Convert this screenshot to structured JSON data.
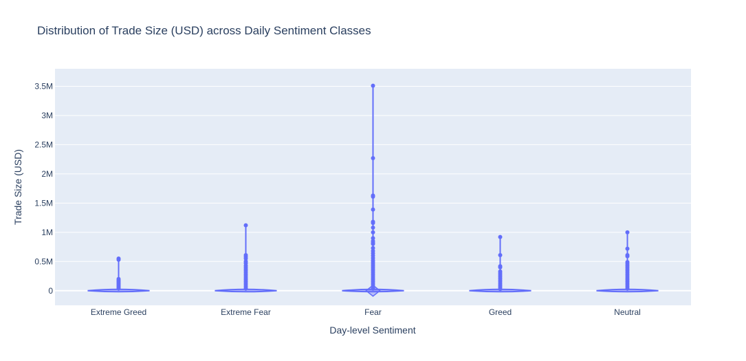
{
  "chart_data": {
    "type": "violin",
    "title": "Distribution of Trade Size (USD) across Daily Sentiment Classes",
    "xlabel": "Day-level Sentiment",
    "ylabel": "Trade Size (USD)",
    "ylim": [
      -250000,
      3800000
    ],
    "yticks": [
      {
        "value": 0,
        "label": "0"
      },
      {
        "value": 500000,
        "label": "0.5M"
      },
      {
        "value": 1000000,
        "label": "1M"
      },
      {
        "value": 1500000,
        "label": "1.5M"
      },
      {
        "value": 2000000,
        "label": "2M"
      },
      {
        "value": 2500000,
        "label": "2.5M"
      },
      {
        "value": 3000000,
        "label": "3M"
      },
      {
        "value": 3500000,
        "label": "3.5M"
      }
    ],
    "grid": true,
    "series_color": "#636efa",
    "plot_background": "#e5ecf6",
    "categories": [
      {
        "name": "Extreme Greed",
        "max": 550000,
        "upper_fence": 200000,
        "outliers": [
          550000,
          530000,
          200000,
          180000,
          160000,
          140000,
          120000,
          100000,
          80000,
          60000,
          40000
        ]
      },
      {
        "name": "Extreme Fear",
        "max": 1120000,
        "upper_fence": 300000,
        "outliers": [
          1120000,
          610000,
          580000,
          550000,
          500000,
          470000,
          430000,
          400000,
          370000,
          340000,
          310000,
          280000,
          250000,
          220000,
          190000,
          160000,
          130000,
          100000,
          70000,
          40000
        ]
      },
      {
        "name": "Fear",
        "max": 3510000,
        "upper_fence": 500000,
        "outliers": [
          3510000,
          2270000,
          1630000,
          1610000,
          1390000,
          1180000,
          1160000,
          1080000,
          1000000,
          900000,
          850000,
          820000,
          800000,
          730000,
          680000,
          640000,
          600000,
          560000,
          520000,
          490000,
          460000,
          430000,
          400000,
          370000,
          340000,
          310000,
          280000,
          250000,
          220000,
          190000,
          160000,
          130000,
          100000,
          70000,
          40000
        ]
      },
      {
        "name": "Greed",
        "max": 920000,
        "upper_fence": 300000,
        "outliers": [
          920000,
          610000,
          420000,
          400000,
          330000,
          300000,
          270000,
          240000,
          210000,
          180000,
          150000,
          120000,
          90000,
          60000,
          30000
        ]
      },
      {
        "name": "Neutral",
        "max": 1000000,
        "upper_fence": 300000,
        "outliers": [
          1000000,
          720000,
          610000,
          590000,
          490000,
          460000,
          430000,
          400000,
          370000,
          340000,
          310000,
          280000,
          250000,
          220000,
          190000,
          160000,
          130000,
          100000,
          70000,
          40000
        ]
      }
    ]
  }
}
